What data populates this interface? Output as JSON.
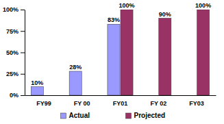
{
  "chart_data": {
    "type": "bar",
    "categories": [
      "FY99",
      "FY 00",
      "FY01",
      "FY 02",
      "FY03"
    ],
    "series": [
      {
        "name": "Actual",
        "color": "#9999ff",
        "values": [
          10,
          28,
          83,
          null,
          null
        ],
        "value_labels": [
          "10%",
          "28%",
          "83%",
          null,
          null
        ]
      },
      {
        "name": "Projected",
        "color": "#993366",
        "values": [
          null,
          null,
          100,
          90,
          100
        ],
        "value_labels": [
          null,
          null,
          "100%",
          "90%",
          "100%"
        ]
      }
    ],
    "ylim": [
      0,
      100
    ],
    "yticks": [
      {
        "value": 0,
        "label": "0%"
      },
      {
        "value": 25,
        "label": "25%"
      },
      {
        "value": 50,
        "label": "50%"
      },
      {
        "value": 75,
        "label": "75%"
      },
      {
        "value": 100,
        "label": "100%"
      }
    ],
    "grid": false,
    "legend": "bottom",
    "data_labels": true
  }
}
